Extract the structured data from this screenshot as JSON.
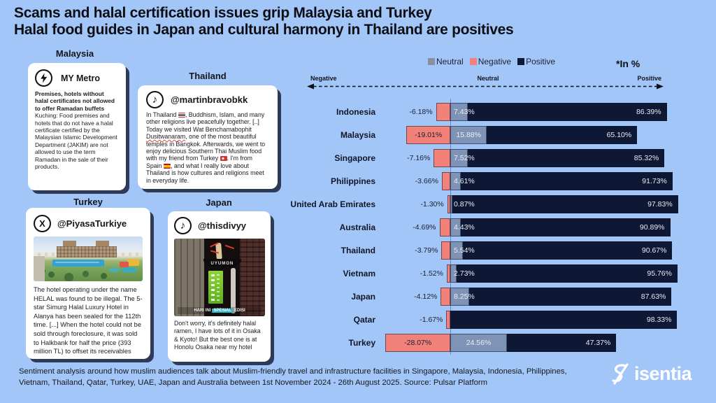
{
  "title": {
    "line1": "Scams and halal certification issues grip Malaysia and Turkey",
    "line2": "Halal food guides in Japan and cultural harmony in Thailand are positives"
  },
  "cards": [
    {
      "country": "Malaysia",
      "source": "MY Metro",
      "icon": "lightning-bolt-icon",
      "bold_text": "Premises, hotels without halal certificates not allowed to offer Ramadan buffets",
      "text": "Kuching: Food premises and hotels that do not have a halal certificate certified by the Malaysian Islamic Development Department (JAKIM) are not allowed to use the term Ramadan in the sale of their products."
    },
    {
      "country": "Thailand",
      "source": "@martinbravobkk",
      "icon": "tiktok-icon",
      "text": "In Thailand 🇹🇭, Buddhism, Islam, and many other religions live peacefully together. [..] Today we visited Wat Benchamabophit Dusitwanaram, one of the most beautiful temples in Bangkok. Afterwards, we went to enjoy delicious Southern Thai Muslim food with my friend from Turkey 🇹🇷. I'm from Spain 🇪🇸, and what I really love about Thailand is how cultures and religions meet in everyday life.",
      "text_segments": [
        {
          "t": "In Thailand "
        },
        {
          "flag": "thailand"
        },
        {
          "t": ", Buddhism, Islam, and many other religions live peacefully together. [..] Today we visited Wat Benchamabophit "
        },
        {
          "t": "Dusitwanaram",
          "mark": "spellcheck"
        },
        {
          "t": ", one of the most beautiful temples in Bangkok. Afterwards, we went to enjoy delicious Southern Thai Muslim food with my friend from Turkey "
        },
        {
          "flag": "turkey"
        },
        {
          "t": ". I'm from Spain "
        },
        {
          "flag": "spain"
        },
        {
          "t": ", and what I really love about Thailand is how cultures and religions meet in everyday life."
        }
      ]
    },
    {
      "country": "Turkey",
      "source": "@PiyasaTurkiye",
      "icon": "x-twitter-icon",
      "image": "resort-hotel-aerial-photo",
      "text": "The hotel operating under the name HELAL was found to be illegal. The 5-star Simurg Halal Luxury Hotel in Alanya has been sealed for the 112th time. [...] When the hotel could not be sold through foreclosure, it was sold to Halkbank for half the price (393 million TL) to offset its receivables"
    },
    {
      "country": "Japan",
      "source": "@thisdivyy",
      "icon": "tiktok-icon",
      "image": "ramen-stand-photo",
      "sign_text": "UYUMON",
      "caption_pre": "HARI INI",
      "caption_mid": "SPESIAL",
      "caption_post": "EDISI",
      "text": "Don't worry, it's definitely halal ramen, I have lots of it in Osaka & Kyoto! But the best one is at Honolu Osaka near my hotel"
    }
  ],
  "chart_data": {
    "type": "bar",
    "orientation": "horizontal",
    "stacked": true,
    "unit_note": "*In %",
    "legend": [
      {
        "label": "Neutral",
        "color": "#8A8F9B"
      },
      {
        "label": "Negative",
        "color": "#F2817A"
      },
      {
        "label": "Positive",
        "color": "#0E1834"
      }
    ],
    "axis": {
      "left": "Negative",
      "center": "Neutral",
      "right": "Positive"
    },
    "colors": {
      "negative": "#F2817A",
      "neutral": "#7E93B6",
      "positive": "#0E1834"
    },
    "categories": [
      "Indonesia",
      "Malaysia",
      "Singapore",
      "Philippines",
      "United Arab Emirates",
      "Australia",
      "Thailand",
      "Vietnam",
      "Japan",
      "Qatar",
      "Turkey"
    ],
    "rows": [
      {
        "country": "Indonesia",
        "negative": 6.18,
        "neutral": 7.43,
        "positive": 86.39,
        "negative_label": "-6.18%",
        "neutral_label": "7.43%",
        "positive_label": "86.39%"
      },
      {
        "country": "Malaysia",
        "negative": 19.01,
        "neutral": 15.88,
        "positive": 65.1,
        "negative_label": "-19.01%",
        "neutral_label": "15.88%",
        "positive_label": "65.10%"
      },
      {
        "country": "Singapore",
        "negative": 7.16,
        "neutral": 7.52,
        "positive": 85.32,
        "negative_label": "-7.16%",
        "neutral_label": "7.52%",
        "positive_label": "85.32%"
      },
      {
        "country": "Philippines",
        "negative": 3.66,
        "neutral": 4.61,
        "positive": 91.73,
        "negative_label": "-3.66%",
        "neutral_label": "4.61%",
        "positive_label": "91.73%"
      },
      {
        "country": "United Arab Emirates",
        "negative": 1.3,
        "neutral": 0.87,
        "positive": 97.83,
        "negative_label": "-1.30%",
        "neutral_label": "0.87%",
        "positive_label": "97.83%"
      },
      {
        "country": "Australia",
        "negative": 4.69,
        "neutral": 4.43,
        "positive": 90.89,
        "negative_label": "-4.69%",
        "neutral_label": "4.43%",
        "positive_label": "90.89%"
      },
      {
        "country": "Thailand",
        "negative": 3.79,
        "neutral": 5.54,
        "positive": 90.67,
        "negative_label": "-3.79%",
        "neutral_label": "5.54%",
        "positive_label": "90.67%"
      },
      {
        "country": "Vietnam",
        "negative": 1.52,
        "neutral": 2.73,
        "positive": 95.76,
        "negative_label": "-1.52%",
        "neutral_label": "2.73%",
        "positive_label": "95.76%"
      },
      {
        "country": "Japan",
        "negative": 4.12,
        "neutral": 8.25,
        "positive": 87.63,
        "negative_label": "-4.12%",
        "neutral_label": "8.25%",
        "positive_label": "87.63%"
      },
      {
        "country": "Qatar",
        "negative": 1.67,
        "neutral": 0,
        "positive": 98.33,
        "negative_label": "-1.67%",
        "neutral_label": "",
        "positive_label": "98.33%"
      },
      {
        "country": "Turkey",
        "negative": 28.07,
        "neutral": 24.56,
        "positive": 47.37,
        "negative_label": "-28.07%",
        "neutral_label": "24.56%",
        "positive_label": "47.37%"
      }
    ]
  },
  "footer": {
    "line1": "Sentiment analysis around how muslim audiences talk about Muslim-friendly travel and infrastructure facilities in Singapore, Malaysia, Indonesia, Philippines,",
    "line2": "Vietnam, Thailand, Qatar, Turkey, UAE, Japan and Australia between 1st November 2024 - 26th August 2025. Source: Pulsar Platform"
  },
  "brand": {
    "name": "isentia"
  }
}
